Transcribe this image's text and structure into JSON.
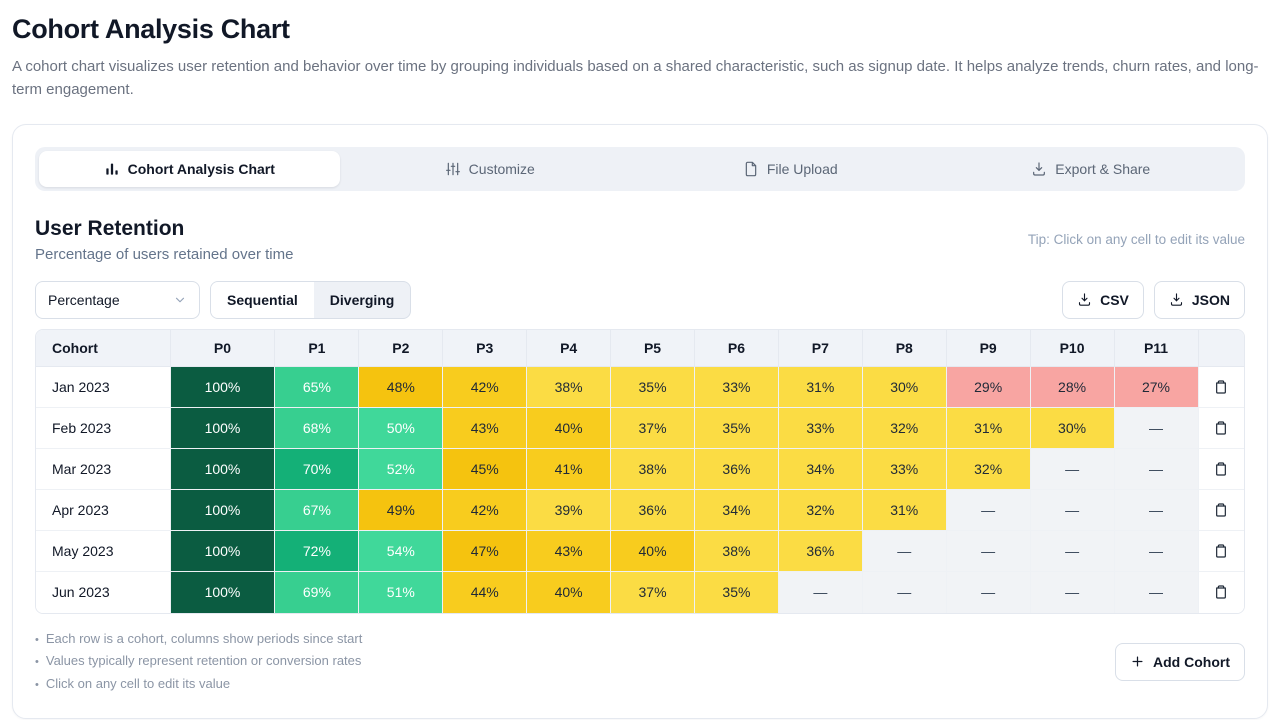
{
  "page": {
    "title": "Cohort Analysis Chart",
    "description": "A cohort chart visualizes user retention and behavior over time by grouping individuals based on a shared characteristic, such as signup date. It helps analyze trends, churn rates, and long-term engagement."
  },
  "tabs": [
    {
      "label": "Cohort Analysis Chart",
      "icon": "bar-chart-icon",
      "active": true
    },
    {
      "label": "Customize",
      "icon": "sliders-icon",
      "active": false
    },
    {
      "label": "File Upload",
      "icon": "file-icon",
      "active": false
    },
    {
      "label": "Export & Share",
      "icon": "download-icon",
      "active": false
    }
  ],
  "section": {
    "title": "User Retention",
    "subtitle": "Percentage of users retained over time",
    "tip": "Tip: Click on any cell to edit its value"
  },
  "controls": {
    "format_select": {
      "value": "Percentage"
    },
    "palette_toggle": {
      "options": [
        "Sequential",
        "Diverging"
      ],
      "selected": "Sequential"
    },
    "export_csv_label": "CSV",
    "export_json_label": "JSON"
  },
  "table": {
    "columns": [
      "Cohort",
      "P0",
      "P1",
      "P2",
      "P3",
      "P4",
      "P5",
      "P6",
      "P7",
      "P8",
      "P9",
      "P10",
      "P11"
    ],
    "empty_cell_text": "—",
    "value_suffix": "%",
    "rows": [
      {
        "cohort": "Jan 2023",
        "values": [
          100,
          65,
          48,
          42,
          38,
          35,
          33,
          31,
          30,
          29,
          28,
          27
        ]
      },
      {
        "cohort": "Feb 2023",
        "values": [
          100,
          68,
          50,
          43,
          40,
          37,
          35,
          33,
          32,
          31,
          30,
          null
        ]
      },
      {
        "cohort": "Mar 2023",
        "values": [
          100,
          70,
          52,
          45,
          41,
          38,
          36,
          34,
          33,
          32,
          null,
          null
        ]
      },
      {
        "cohort": "Apr 2023",
        "values": [
          100,
          67,
          49,
          42,
          39,
          36,
          34,
          32,
          31,
          null,
          null,
          null
        ]
      },
      {
        "cohort": "May 2023",
        "values": [
          100,
          72,
          54,
          47,
          43,
          40,
          38,
          36,
          null,
          null,
          null,
          null
        ]
      },
      {
        "cohort": "Jun 2023",
        "values": [
          100,
          69,
          51,
          44,
          40,
          37,
          35,
          null,
          null,
          null,
          null,
          null
        ]
      }
    ]
  },
  "palette": {
    "bands": [
      {
        "min": 100,
        "bg": "#0b5c41",
        "fg": "#ffffff"
      },
      {
        "min": 70,
        "bg": "#14b077",
        "fg": "#ffffff"
      },
      {
        "min": 65,
        "bg": "#37cf90",
        "fg": "#ffffff"
      },
      {
        "min": 50,
        "bg": "#40d89a",
        "fg": "#ffffff"
      },
      {
        "min": 45,
        "bg": "#f5c30f",
        "fg": "#1f2937"
      },
      {
        "min": 40,
        "bg": "#f8cc1e",
        "fg": "#1f2937"
      },
      {
        "min": 30,
        "bg": "#fbdc44",
        "fg": "#1f2937"
      },
      {
        "min": 0,
        "bg": "#f8a5a2",
        "fg": "#1f2937"
      }
    ],
    "empty_bg": "#f1f3f6",
    "empty_fg": "#334155"
  },
  "footer": {
    "notes": [
      "Each row is a cohort, columns show periods since start",
      "Values typically represent retention or conversion rates",
      "Click on any cell to edit its value"
    ],
    "add_button_label": "Add Cohort"
  }
}
